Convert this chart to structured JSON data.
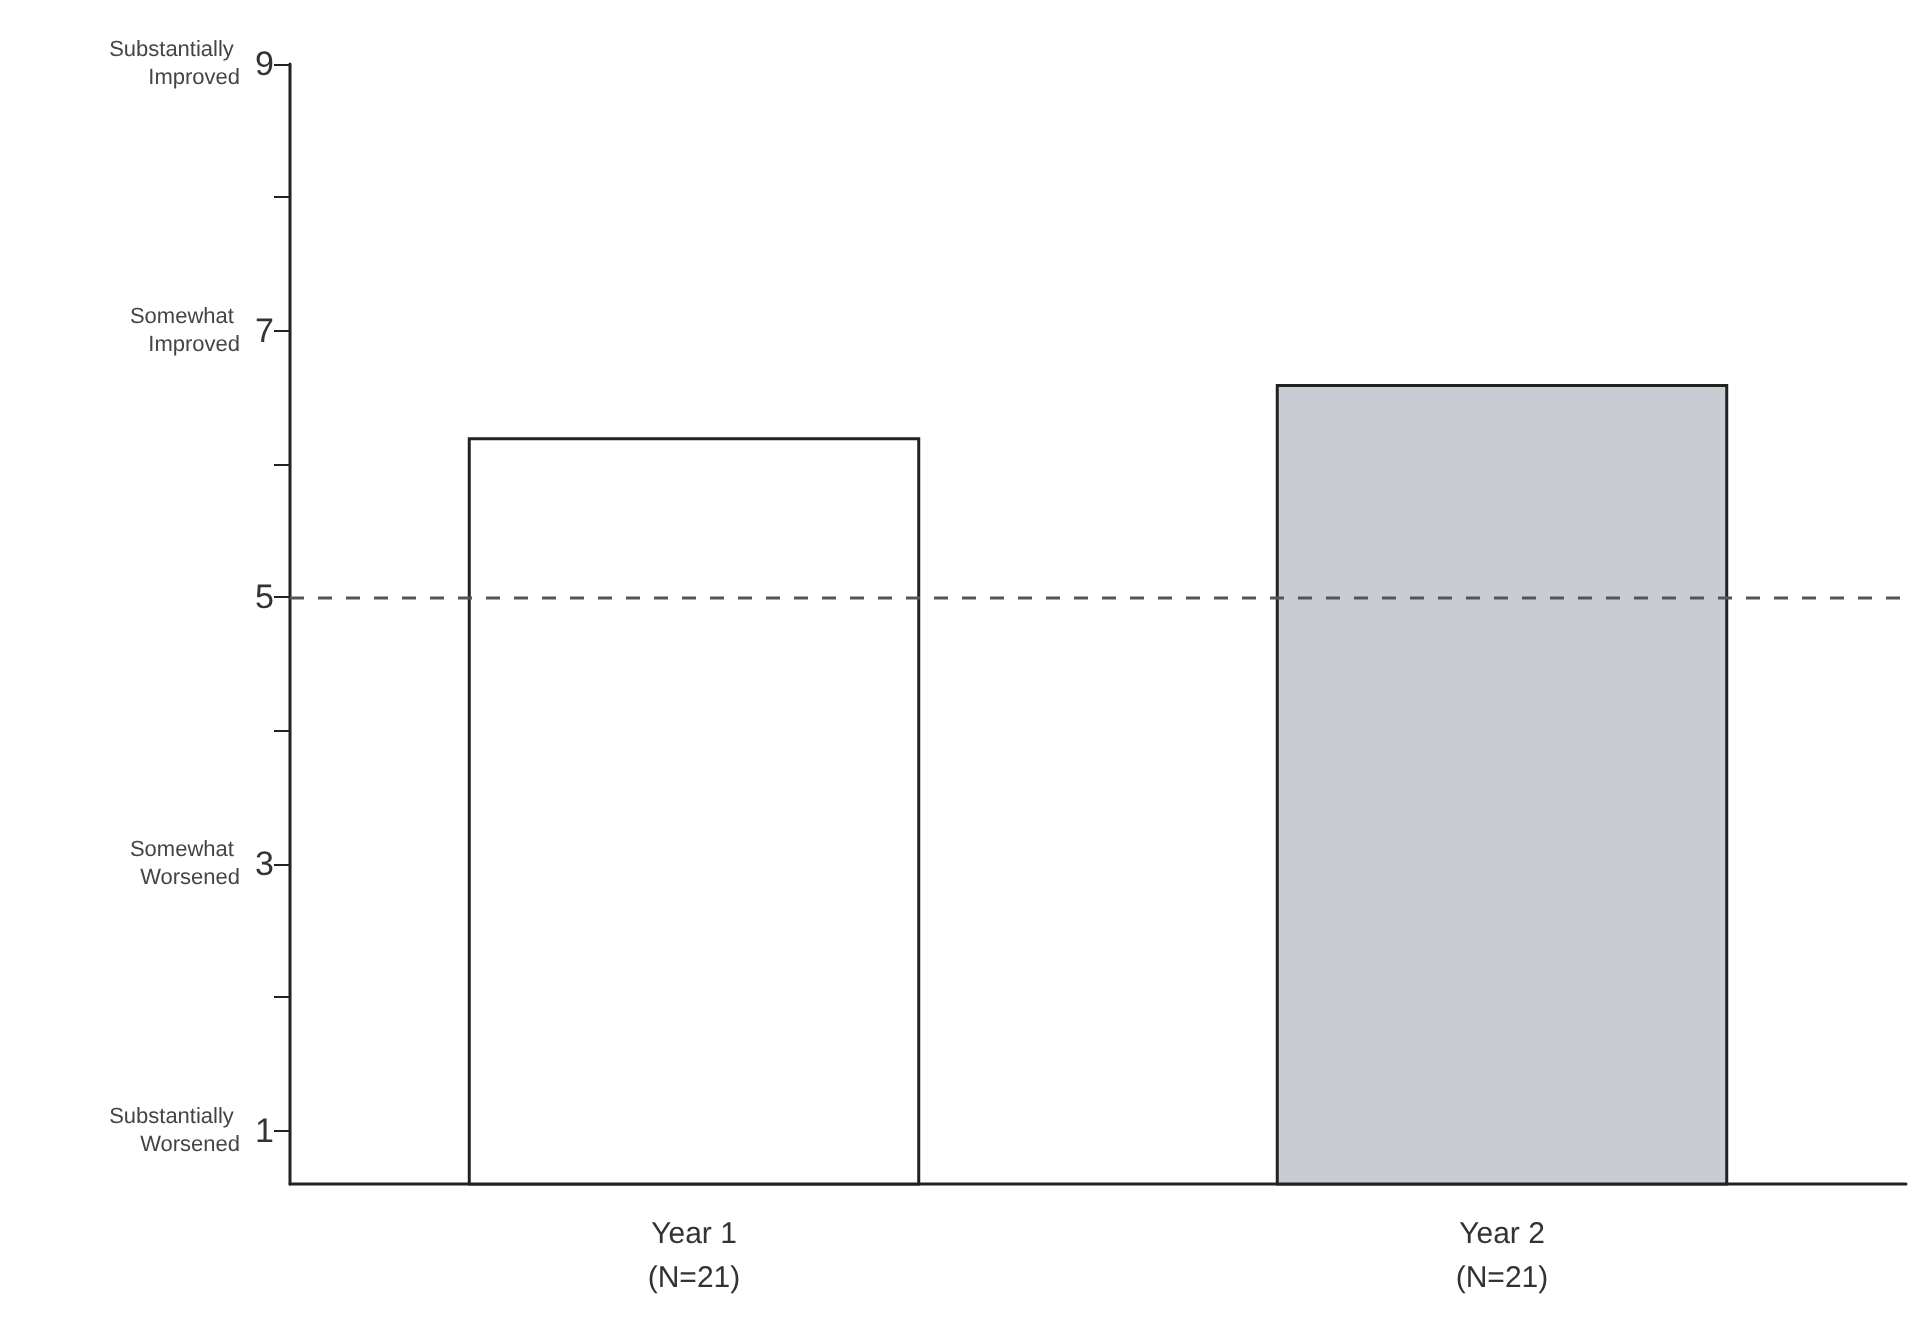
{
  "chart_data": {
    "type": "bar",
    "categories": [
      "Year 1\n(N=21)",
      "Year 2\n(N=21)"
    ],
    "values": [
      6.2,
      6.6
    ],
    "colors": [
      "#ffffff",
      "#c9ccd3"
    ],
    "ylim": [
      0.6,
      9
    ],
    "yticks": [
      1,
      {
        "value": 2,
        "label": null
      },
      3,
      {
        "value": 4,
        "label": null
      },
      5,
      {
        "value": 6,
        "label": null
      },
      7,
      {
        "value": 8,
        "label": null
      },
      9
    ],
    "annotations": [
      "Substantially Improved",
      "Somewhat Improved",
      "Somewhat Worsened",
      "Substantially Worsened"
    ],
    "ref_lines": [
      {
        "axis": "y",
        "value": 5,
        "color": "#555555",
        "line_style": "dashed"
      }
    ],
    "grid": false
  }
}
